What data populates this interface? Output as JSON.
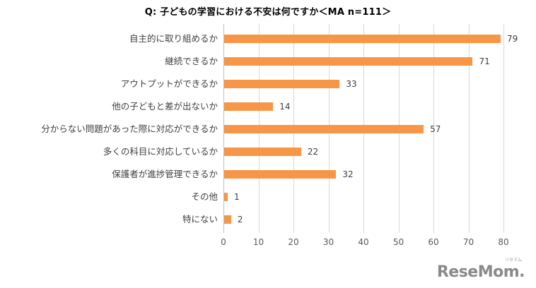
{
  "title": "Q:  子どもの学習における不安は何ですか＜MA n=111＞",
  "bar_color": "#f79646",
  "logo": {
    "text": "ReseMom.",
    "sub": "リセマム"
  },
  "chart_data": {
    "type": "bar",
    "orientation": "horizontal",
    "title": "Q:  子どもの学習における不安は何ですか＜MA n=111＞",
    "categories": [
      "自主的に取り組めるか",
      "継続できるか",
      "アウトプットができるか",
      "他の子どもと差が出ないか",
      "分からない問題があった際に対応ができるか",
      "多くの科目に対応しているか",
      "保護者が進捗管理できるか",
      "その他",
      "特にない"
    ],
    "values": [
      79,
      71,
      33,
      14,
      57,
      22,
      32,
      1,
      2
    ],
    "xlabel": "",
    "ylabel": "",
    "xlim": [
      0,
      80
    ],
    "xticks": [
      "0",
      "10",
      "20",
      "30",
      "40",
      "50",
      "60",
      "70",
      "80"
    ],
    "grid": true,
    "legend": "none",
    "data_labels": true
  }
}
